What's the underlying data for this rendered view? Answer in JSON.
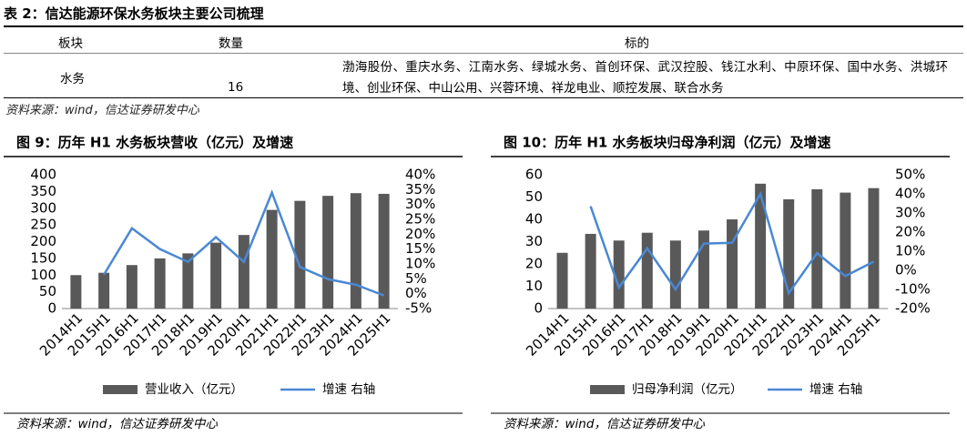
{
  "table": {
    "title": "表 2：信达能源环保水务板块主要公司梳理",
    "header": [
      "板块",
      "数量",
      "标的"
    ],
    "rows": [
      [
        "水务",
        "16",
        "渤海股份、重庆水务、江南水务、绿城水务、首创环保、武汉控股、钱江水利、中原环保、国中水务、洪城环境、创业环保、中山公用、兴蓉环境、祥龙电业、顺控发展、联合水务"
      ]
    ],
    "source": "资料来源：wind，信达证券研发中心"
  },
  "chart_data": [
    {
      "type": "bar",
      "title": "图 9：历年 H1 水务板块营收（亿元）及增速",
      "categories": [
        "2014H1",
        "2015H1",
        "2016H1",
        "2017H1",
        "2018H1",
        "2019H1",
        "2020H1",
        "2021H1",
        "2022H1",
        "2023H1",
        "2024H1",
        "2025H1"
      ],
      "series": [
        {
          "name": "营业收入（亿元）",
          "color": "#595959",
          "values": [
            100,
            107,
            130,
            150,
            165,
            197,
            220,
            295,
            322,
            337,
            345,
            343
          ]
        },
        {
          "name": "增速 右轴",
          "color": "#4a88d4",
          "axis": "y2",
          "values": [
            null,
            6.4,
            22,
            15,
            10.7,
            19,
            10.7,
            34,
            9,
            4.9,
            3,
            -0.6
          ]
        }
      ],
      "ylim": [
        0,
        400
      ],
      "yticks": [
        0,
        50,
        100,
        150,
        200,
        250,
        300,
        350,
        400
      ],
      "y2lim": [
        -5,
        40
      ],
      "y2ticks": [
        {
          "value": -5,
          "label": "-5%"
        },
        {
          "value": 0,
          "label": "0%"
        },
        {
          "value": 5,
          "label": "5%"
        },
        {
          "value": 10,
          "label": "10%"
        },
        {
          "value": 15,
          "label": "15%"
        },
        {
          "value": 20,
          "label": "20%"
        },
        {
          "value": 25,
          "label": "25%"
        },
        {
          "value": 30,
          "label": "30%"
        },
        {
          "value": 35,
          "label": "35%"
        },
        {
          "value": 40,
          "label": "40%"
        }
      ],
      "legend": "bottom",
      "source": "资料来源：wind，信达证券研发中心"
    },
    {
      "type": "bar",
      "title": "图 10：历年 H1 水务板块归母净利润（亿元）及增速",
      "categories": [
        "2014H1",
        "2015H1",
        "2016H1",
        "2017H1",
        "2018H1",
        "2019H1",
        "2020H1",
        "2021H1",
        "2022H1",
        "2023H1",
        "2024H1",
        "2025H1"
      ],
      "series": [
        {
          "name": "归母净利润（亿元）",
          "color": "#595959",
          "values": [
            25,
            33.5,
            30.5,
            34,
            30.5,
            35,
            40,
            56,
            49,
            53.5,
            52,
            54
          ]
        },
        {
          "name": "增速 右轴",
          "color": "#4a88d4",
          "axis": "y2",
          "values": [
            null,
            33.5,
            -9,
            11.5,
            -10,
            14,
            14.4,
            40,
            -12,
            9,
            -3,
            4.5
          ]
        }
      ],
      "ylim": [
        0,
        60
      ],
      "yticks": [
        0,
        10,
        20,
        30,
        40,
        50,
        60
      ],
      "y2lim": [
        -20,
        50
      ],
      "y2ticks": [
        {
          "value": -20,
          "label": "-20%"
        },
        {
          "value": -10,
          "label": "-10%"
        },
        {
          "value": 0,
          "label": "0%"
        },
        {
          "value": 10,
          "label": "10%"
        },
        {
          "value": 20,
          "label": "20%"
        },
        {
          "value": 30,
          "label": "30%"
        },
        {
          "value": 40,
          "label": "40%"
        },
        {
          "value": 50,
          "label": "50%"
        }
      ],
      "legend": "bottom",
      "source": "资料来源：wind，信达证券研发中心"
    }
  ]
}
